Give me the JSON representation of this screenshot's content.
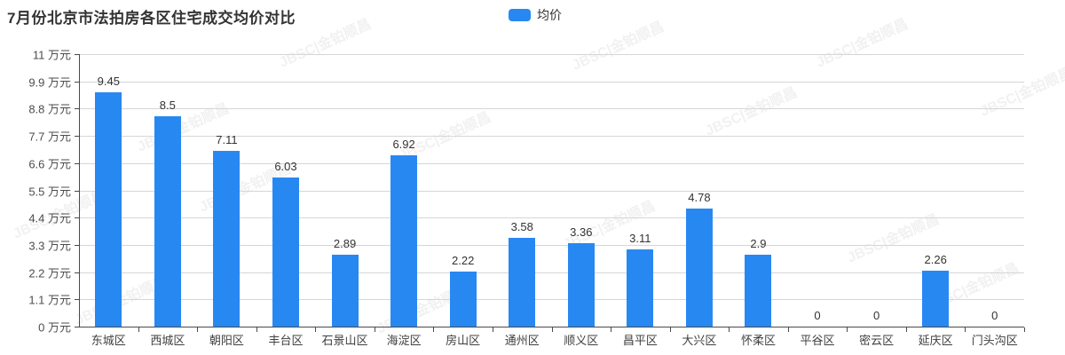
{
  "title": "7月份北京市法拍房各区住宅成交均价对比",
  "legend": {
    "label": "均价",
    "color": "#2888F2"
  },
  "watermark": {
    "text": "JBSC|金铂顺昌"
  },
  "chart_data": {
    "type": "bar",
    "title": "7月份北京市法拍房各区住宅成交均价对比",
    "series_name": "均价",
    "categories": [
      "东城区",
      "西城区",
      "朝阳区",
      "丰台区",
      "石景山区",
      "海淀区",
      "房山区",
      "通州区",
      "顺义区",
      "昌平区",
      "大兴区",
      "怀柔区",
      "平谷区",
      "密云区",
      "延庆区",
      "门头沟区"
    ],
    "values": [
      9.45,
      8.5,
      7.11,
      6.03,
      2.89,
      6.92,
      2.22,
      3.58,
      3.36,
      3.11,
      4.78,
      2.9,
      0,
      0,
      2.26,
      0
    ],
    "unit": "万元",
    "xlabel": "",
    "ylabel": "",
    "ylim": [
      0,
      11
    ],
    "y_ticks": [
      0,
      1.1,
      2.2,
      3.3,
      4.4,
      5.5,
      6.6,
      7.7,
      8.8,
      9.9,
      11
    ],
    "y_tick_suffix": " 万元",
    "bar_color": "#2888F2",
    "grid": true,
    "legend_position": "top-center",
    "value_labels_shown": true
  }
}
